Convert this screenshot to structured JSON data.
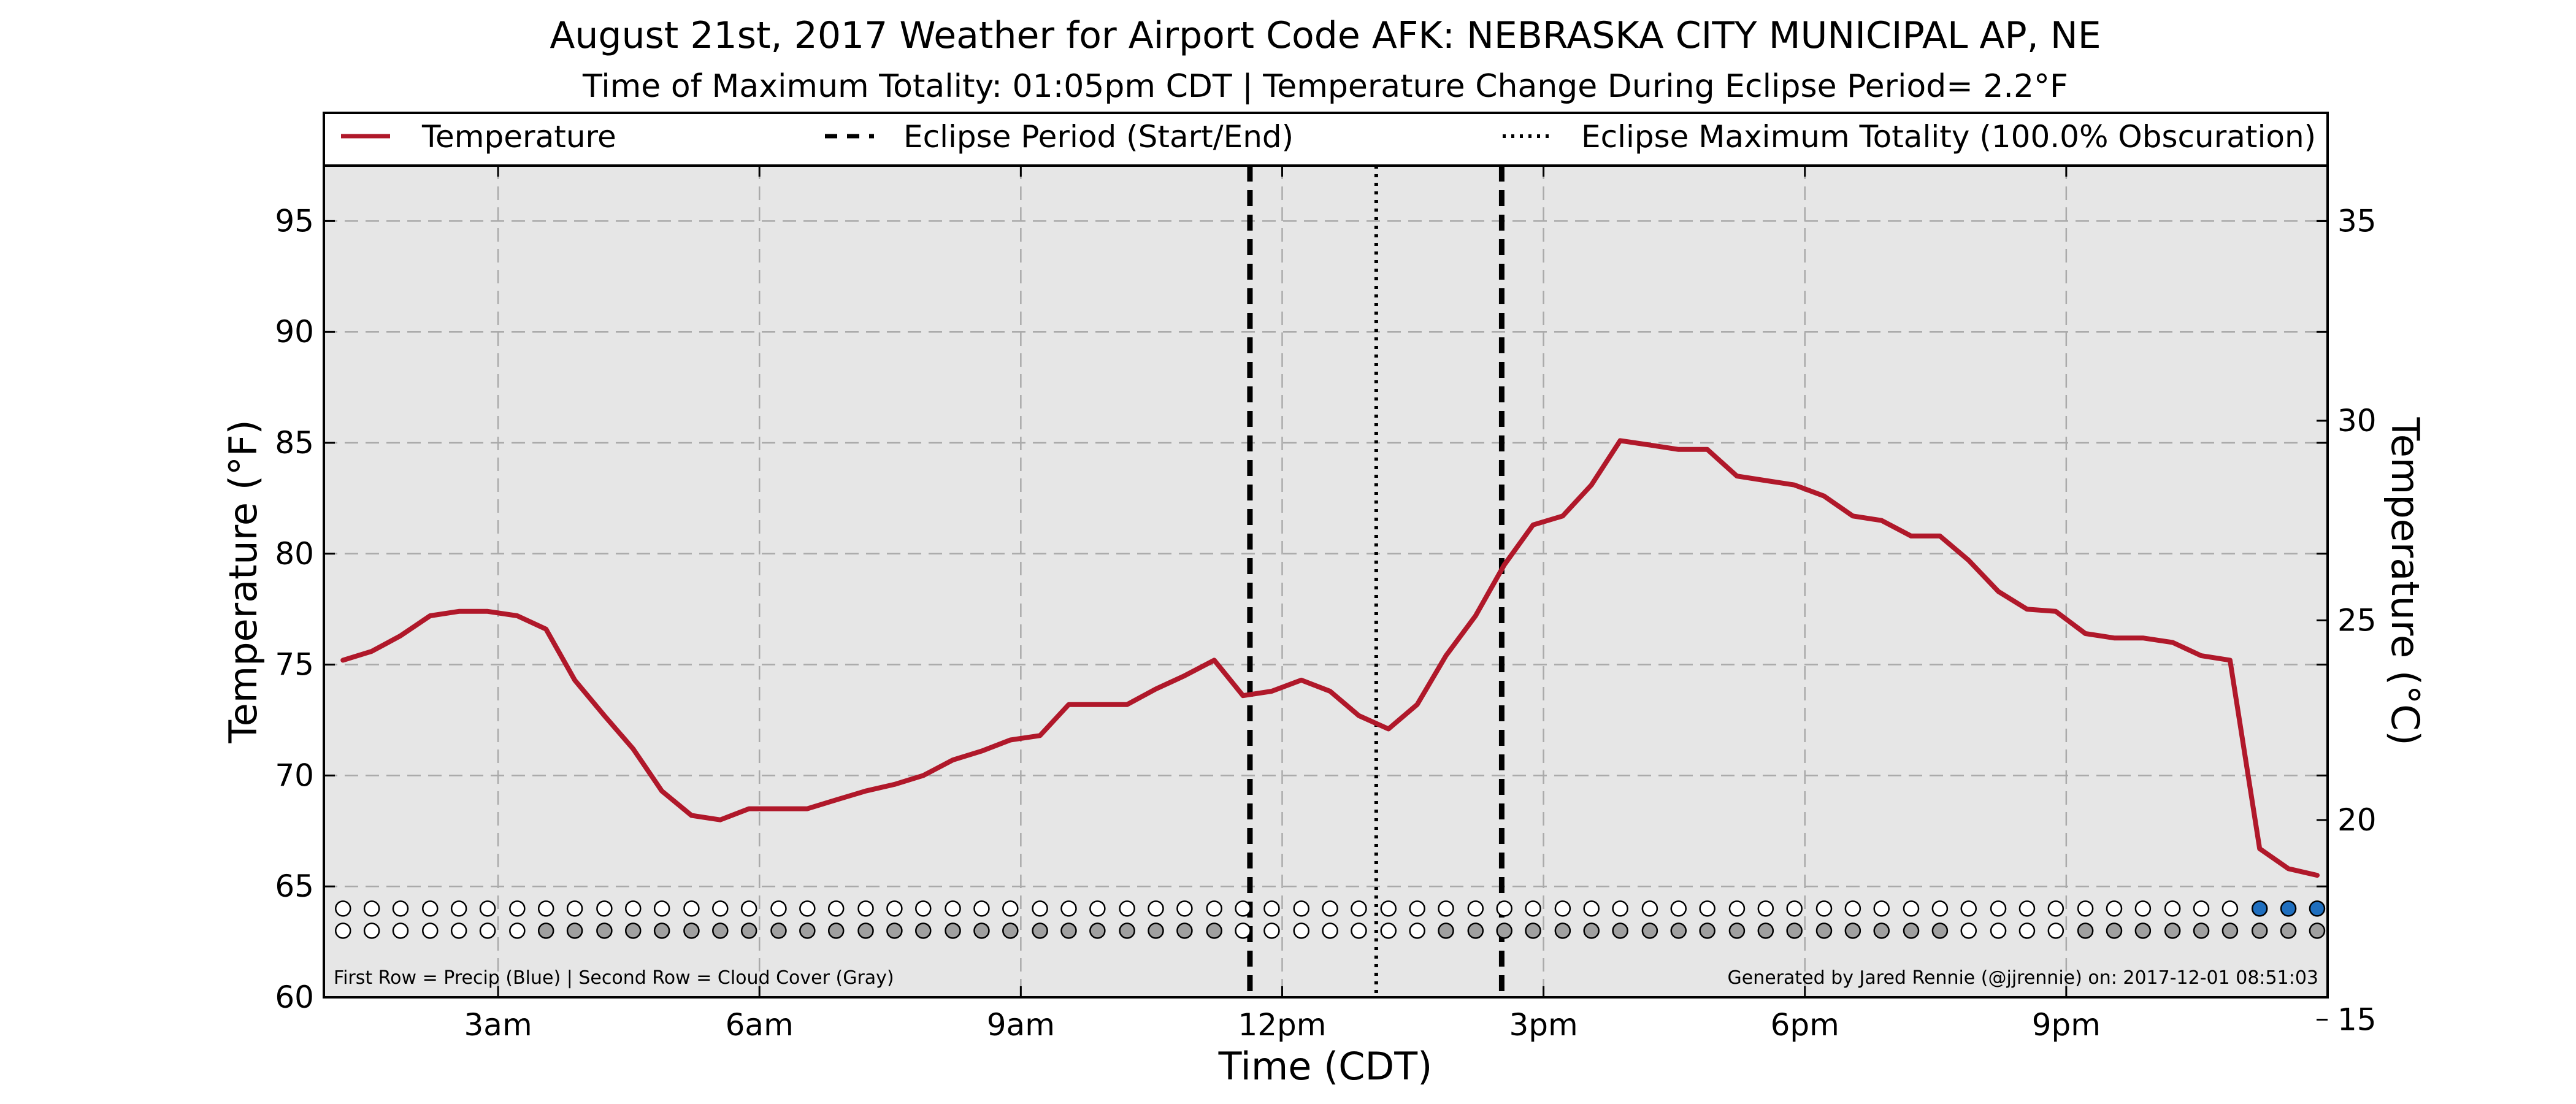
{
  "colors": {
    "plot_bg": "#e6e6e6",
    "temperature_line": "#b0182a",
    "precip_filled": "#1f6fbf",
    "cloud_filled": "#a0a0a0",
    "empty_marker": "#ffffff"
  },
  "chart_data": {
    "type": "line",
    "title": "August 21st, 2017 Weather for Airport Code AFK: NEBRASKA CITY MUNICIPAL AP, NE",
    "subtitle": "Time of Maximum Totality: 01:05pm CDT | Temperature Change During Eclipse Period= 2.2°F",
    "xlabel": "Time (CDT)",
    "ylabel": "Temperature (°F)",
    "ylabel_right": "Temperature (°C)",
    "xlim": [
      1.0,
      24.0
    ],
    "ylim": [
      60,
      97.5
    ],
    "ylim_right": [
      15.56,
      36.39
    ],
    "x_ticks": [
      {
        "x": 3,
        "label": "3am"
      },
      {
        "x": 6,
        "label": "6am"
      },
      {
        "x": 9,
        "label": "9am"
      },
      {
        "x": 12,
        "label": "12pm"
      },
      {
        "x": 15,
        "label": "3pm"
      },
      {
        "x": 18,
        "label": "6pm"
      },
      {
        "x": 21,
        "label": "9pm"
      }
    ],
    "y_ticks": [
      60,
      65,
      70,
      75,
      80,
      85,
      90,
      95
    ],
    "y_ticks_right": [
      15,
      20,
      25,
      30,
      35
    ],
    "grid": true,
    "legend_position": "top",
    "legend": {
      "temperature": "Temperature",
      "eclipse_period": "Eclipse Period (Start/End)",
      "max_totality": "Eclipse Maximum Totality (100.0% Obscuration)"
    },
    "series": [
      {
        "name": "Temperature",
        "x": [
          1.22,
          1.55,
          1.88,
          2.22,
          2.55,
          2.88,
          3.22,
          3.55,
          3.88,
          4.22,
          4.55,
          4.88,
          5.22,
          5.55,
          5.88,
          6.22,
          6.55,
          6.88,
          7.22,
          7.55,
          7.88,
          8.22,
          8.55,
          8.88,
          9.22,
          9.55,
          9.88,
          10.22,
          10.55,
          10.88,
          11.22,
          11.55,
          11.88,
          12.22,
          12.55,
          12.88,
          13.22,
          13.55,
          13.88,
          14.22,
          14.55,
          14.88,
          15.22,
          15.55,
          15.88,
          16.22,
          16.55,
          16.88,
          17.22,
          17.55,
          17.88,
          18.22,
          18.55,
          18.88,
          19.22,
          19.55,
          19.88,
          20.22,
          20.55,
          20.88,
          21.22,
          21.55,
          21.88,
          22.22,
          22.55,
          22.88,
          23.22,
          23.55,
          23.88
        ],
        "values": [
          75.2,
          75.6,
          76.3,
          77.2,
          77.4,
          77.4,
          77.2,
          76.6,
          74.3,
          72.7,
          71.2,
          69.3,
          68.2,
          68.0,
          68.5,
          68.5,
          68.5,
          68.9,
          69.3,
          69.6,
          70.0,
          70.7,
          71.1,
          71.6,
          71.8,
          73.2,
          73.2,
          73.2,
          73.9,
          74.5,
          75.2,
          73.6,
          73.8,
          74.3,
          73.8,
          72.7,
          72.1,
          73.2,
          75.4,
          77.2,
          79.5,
          81.3,
          81.7,
          83.1,
          85.1,
          84.9,
          84.7,
          84.7,
          83.5,
          83.3,
          83.1,
          82.6,
          81.7,
          81.5,
          80.8,
          80.8,
          79.7,
          78.3,
          77.5,
          77.4,
          76.4,
          76.2,
          76.2,
          76.0,
          75.4,
          75.2,
          66.7,
          65.8,
          65.5
        ]
      }
    ],
    "eclipse_start_x": 11.63,
    "eclipse_end_x": 14.52,
    "max_totality_x": 13.08,
    "marker_rows": {
      "x": [
        1.22,
        1.55,
        1.88,
        2.22,
        2.55,
        2.88,
        3.22,
        3.55,
        3.88,
        4.22,
        4.55,
        4.88,
        5.22,
        5.55,
        5.88,
        6.22,
        6.55,
        6.88,
        7.22,
        7.55,
        7.88,
        8.22,
        8.55,
        8.88,
        9.22,
        9.55,
        9.88,
        10.22,
        10.55,
        10.88,
        11.22,
        11.55,
        11.88,
        12.22,
        12.55,
        12.88,
        13.22,
        13.55,
        13.88,
        14.22,
        14.55,
        14.88,
        15.22,
        15.55,
        15.88,
        16.22,
        16.55,
        16.88,
        17.22,
        17.55,
        17.88,
        18.22,
        18.55,
        18.88,
        19.22,
        19.55,
        19.88,
        20.22,
        20.55,
        20.88,
        21.22,
        21.55,
        21.88,
        22.22,
        22.55,
        22.88,
        23.22,
        23.55,
        23.88
      ],
      "precip": [
        0,
        0,
        0,
        0,
        0,
        0,
        0,
        0,
        0,
        0,
        0,
        0,
        0,
        0,
        0,
        0,
        0,
        0,
        0,
        0,
        0,
        0,
        0,
        0,
        0,
        0,
        0,
        0,
        0,
        0,
        0,
        0,
        0,
        0,
        0,
        0,
        0,
        0,
        0,
        0,
        0,
        0,
        0,
        0,
        0,
        0,
        0,
        0,
        0,
        0,
        0,
        0,
        0,
        0,
        0,
        0,
        0,
        0,
        0,
        0,
        0,
        0,
        0,
        0,
        0,
        0,
        1,
        1,
        1
      ],
      "cloud": [
        0,
        0,
        0,
        0,
        0,
        0,
        0,
        1,
        1,
        1,
        1,
        1,
        1,
        1,
        1,
        1,
        1,
        1,
        1,
        1,
        1,
        1,
        1,
        1,
        1,
        1,
        1,
        1,
        1,
        1,
        1,
        0,
        0,
        0,
        0,
        0,
        0,
        0,
        1,
        1,
        1,
        1,
        1,
        1,
        1,
        1,
        1,
        1,
        1,
        1,
        1,
        1,
        1,
        1,
        1,
        1,
        0,
        0,
        0,
        0,
        1,
        1,
        1,
        1,
        1,
        1,
        1,
        1,
        1
      ],
      "precip_level": 64.0,
      "cloud_level": 63.0
    },
    "footnote_left": "First Row = Precip (Blue) | Second Row = Cloud Cover (Gray)",
    "footnote_right": "Generated by Jared Rennie (@jjrennie) on: 2017-12-01 08:51:03"
  }
}
